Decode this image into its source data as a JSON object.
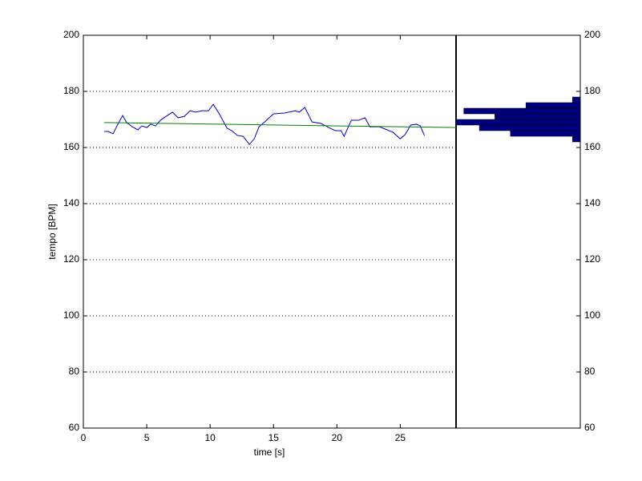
{
  "chart_data": [
    {
      "type": "line",
      "xlabel": "time [s]",
      "ylabel": "tempo [BPM]",
      "xlim": [
        0,
        29.4
      ],
      "ylim": [
        60,
        200
      ],
      "xticks": [
        0,
        5,
        10,
        15,
        20,
        25
      ],
      "yticks": [
        60,
        80,
        100,
        120,
        140,
        160,
        180,
        200
      ],
      "grid": true,
      "series": [
        {
          "color": "#0000cc",
          "x": [
            1.65,
            1.96,
            2.34,
            2.72,
            3.1,
            3.42,
            3.86,
            4.3,
            4.62,
            5.0,
            5.32,
            5.7,
            6.08,
            6.46,
            7.03,
            7.47,
            7.97,
            8.42,
            8.86,
            9.37,
            9.87,
            10.25,
            10.76,
            11.33,
            11.71,
            12.15,
            12.59,
            13.1,
            13.48,
            13.86,
            14.37,
            15.0,
            15.89,
            16.71,
            17.03,
            17.47,
            18.04,
            18.73,
            19.37,
            19.87,
            20.32,
            20.57,
            21.14,
            21.71,
            22.22,
            22.59,
            23.35,
            23.8,
            24.43,
            25.0,
            25.38,
            25.82,
            26.27,
            26.58,
            26.9
          ],
          "values": [
            165.7,
            165.7,
            164.9,
            168.3,
            171.4,
            168.9,
            167.4,
            166.3,
            167.7,
            167.1,
            168.3,
            167.7,
            169.7,
            170.9,
            172.6,
            170.6,
            171.1,
            173.1,
            172.6,
            173.1,
            173.1,
            175.4,
            171.7,
            166.9,
            166.0,
            164.3,
            164.0,
            161.1,
            163.1,
            167.4,
            169.4,
            172.0,
            172.3,
            173.1,
            172.6,
            174.3,
            169.1,
            168.6,
            167.1,
            166.0,
            166.0,
            164.0,
            169.7,
            169.7,
            170.6,
            167.4,
            167.4,
            166.6,
            165.4,
            163.1,
            164.6,
            168.0,
            168.3,
            167.7,
            164.3
          ]
        },
        {
          "color": "#008000",
          "x": [
            1.65,
            29.4
          ],
          "values": [
            168.9,
            167.1
          ]
        }
      ]
    },
    {
      "type": "histogram",
      "orientation": "horizontal",
      "color": "#00007f",
      "bins": [
        162,
        164,
        166,
        168,
        170,
        172,
        174,
        176,
        178
      ],
      "values": [
        1,
        9,
        13,
        16,
        11,
        15,
        7,
        1
      ],
      "xlim": [
        0,
        16
      ],
      "ylim": [
        60,
        200
      ],
      "yticks": [
        60,
        80,
        100,
        120,
        140,
        160,
        180,
        200
      ]
    }
  ]
}
